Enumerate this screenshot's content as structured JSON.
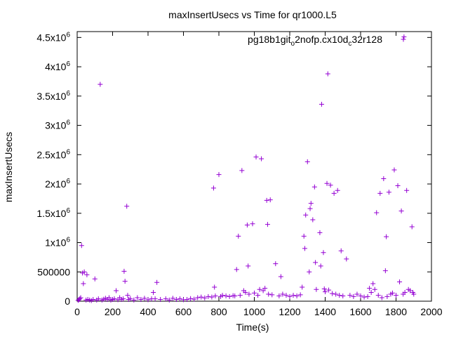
{
  "chart_data": {
    "type": "scatter",
    "title": "maxInsertUsecs vs Time for qr1000.L5",
    "xlabel": "Time(s)",
    "ylabel": "maxInsertUsecs",
    "xlim": [
      0,
      2000
    ],
    "ylim": [
      0,
      4600000
    ],
    "x_ticks": [
      0,
      200,
      400,
      600,
      800,
      1000,
      1200,
      1400,
      1600,
      1800,
      2000
    ],
    "x_tick_labels": [
      "0",
      "200",
      "400",
      "600",
      "800",
      "1000",
      "1200",
      "1400",
      "1600",
      "1800",
      "2000"
    ],
    "y_ticks": [
      0,
      500000,
      1000000,
      1500000,
      2000000,
      2500000,
      3000000,
      3500000,
      4000000,
      4500000
    ],
    "y_tick_labels": [
      {
        "base": "0",
        "exp": ""
      },
      {
        "base": "500000",
        "exp": ""
      },
      {
        "base": "1x10",
        "exp": "6"
      },
      {
        "base": "1.5x10",
        "exp": "6"
      },
      {
        "base": "2x10",
        "exp": "6"
      },
      {
        "base": "2.5x10",
        "exp": "6"
      },
      {
        "base": "3x10",
        "exp": "6"
      },
      {
        "base": "3.5x10",
        "exp": "6"
      },
      {
        "base": "4x10",
        "exp": "6"
      },
      {
        "base": "4.5x10",
        "exp": "6"
      }
    ],
    "legend": {
      "placement": "top-right",
      "parts": [
        {
          "text": "pg18b1git",
          "style": "normal"
        },
        {
          "text": "o",
          "style": "sub"
        },
        {
          "text": "2nofp.cx10d",
          "style": "normal"
        },
        {
          "text": "c",
          "style": "sub"
        },
        {
          "text": "32r128",
          "style": "normal"
        }
      ]
    },
    "series": [
      {
        "color": "#9400d3",
        "marker": "plus",
        "points": [
          [
            5,
            15000
          ],
          [
            10,
            25000
          ],
          [
            15,
            40000
          ],
          [
            20,
            60000
          ],
          [
            25,
            950000
          ],
          [
            30,
            480000
          ],
          [
            35,
            300000
          ],
          [
            40,
            500000
          ],
          [
            50,
            20000
          ],
          [
            55,
            450000
          ],
          [
            60,
            30000
          ],
          [
            70,
            20000
          ],
          [
            80,
            10000
          ],
          [
            90,
            30000
          ],
          [
            100,
            380000
          ],
          [
            110,
            20000
          ],
          [
            120,
            40000
          ],
          [
            130,
            3700000
          ],
          [
            140,
            20000
          ],
          [
            150,
            35000
          ],
          [
            160,
            50000
          ],
          [
            170,
            30000
          ],
          [
            180,
            60000
          ],
          [
            190,
            20000
          ],
          [
            200,
            30000
          ],
          [
            210,
            40000
          ],
          [
            220,
            180000
          ],
          [
            230,
            25000
          ],
          [
            240,
            60000
          ],
          [
            250,
            30000
          ],
          [
            260,
            40000
          ],
          [
            265,
            510000
          ],
          [
            270,
            340000
          ],
          [
            280,
            1620000
          ],
          [
            285,
            100000
          ],
          [
            290,
            30000
          ],
          [
            300,
            45000
          ],
          [
            320,
            20000
          ],
          [
            340,
            60000
          ],
          [
            360,
            30000
          ],
          [
            380,
            50000
          ],
          [
            400,
            25000
          ],
          [
            420,
            40000
          ],
          [
            430,
            150000
          ],
          [
            440,
            40000
          ],
          [
            450,
            320000
          ],
          [
            470,
            30000
          ],
          [
            500,
            40000
          ],
          [
            520,
            20000
          ],
          [
            540,
            50000
          ],
          [
            560,
            30000
          ],
          [
            580,
            40000
          ],
          [
            600,
            25000
          ],
          [
            620,
            30000
          ],
          [
            640,
            45000
          ],
          [
            660,
            35000
          ],
          [
            680,
            60000
          ],
          [
            700,
            70000
          ],
          [
            720,
            55000
          ],
          [
            740,
            80000
          ],
          [
            760,
            70000
          ],
          [
            770,
            1930000
          ],
          [
            775,
            240000
          ],
          [
            780,
            90000
          ],
          [
            800,
            2160000
          ],
          [
            810,
            80000
          ],
          [
            820,
            100000
          ],
          [
            840,
            90000
          ],
          [
            860,
            80000
          ],
          [
            880,
            95000
          ],
          [
            890,
            90000
          ],
          [
            900,
            540000
          ],
          [
            910,
            1110000
          ],
          [
            920,
            100000
          ],
          [
            930,
            2230000
          ],
          [
            940,
            180000
          ],
          [
            950,
            150000
          ],
          [
            960,
            1300000
          ],
          [
            965,
            600000
          ],
          [
            970,
            120000
          ],
          [
            990,
            1320000
          ],
          [
            1000,
            140000
          ],
          [
            1010,
            2460000
          ],
          [
            1020,
            100000
          ],
          [
            1030,
            200000
          ],
          [
            1040,
            2430000
          ],
          [
            1050,
            180000
          ],
          [
            1060,
            220000
          ],
          [
            1070,
            1720000
          ],
          [
            1075,
            1310000
          ],
          [
            1080,
            120000
          ],
          [
            1090,
            1730000
          ],
          [
            1100,
            110000
          ],
          [
            1120,
            640000
          ],
          [
            1140,
            90000
          ],
          [
            1150,
            420000
          ],
          [
            1160,
            120000
          ],
          [
            1180,
            100000
          ],
          [
            1200,
            80000
          ],
          [
            1220,
            100000
          ],
          [
            1240,
            90000
          ],
          [
            1260,
            110000
          ],
          [
            1270,
            240000
          ],
          [
            1280,
            1110000
          ],
          [
            1285,
            900000
          ],
          [
            1290,
            1470000
          ],
          [
            1300,
            2380000
          ],
          [
            1310,
            500000
          ],
          [
            1315,
            1580000
          ],
          [
            1320,
            1670000
          ],
          [
            1330,
            1390000
          ],
          [
            1340,
            1950000
          ],
          [
            1345,
            660000
          ],
          [
            1350,
            200000
          ],
          [
            1370,
            1170000
          ],
          [
            1375,
            600000
          ],
          [
            1380,
            3360000
          ],
          [
            1390,
            830000
          ],
          [
            1395,
            210000
          ],
          [
            1400,
            160000
          ],
          [
            1410,
            2010000
          ],
          [
            1415,
            3880000
          ],
          [
            1420,
            190000
          ],
          [
            1430,
            1980000
          ],
          [
            1440,
            130000
          ],
          [
            1450,
            1840000
          ],
          [
            1460,
            120000
          ],
          [
            1470,
            1890000
          ],
          [
            1480,
            100000
          ],
          [
            1490,
            860000
          ],
          [
            1500,
            90000
          ],
          [
            1520,
            720000
          ],
          [
            1540,
            100000
          ],
          [
            1560,
            80000
          ],
          [
            1580,
            120000
          ],
          [
            1600,
            90000
          ],
          [
            1620,
            70000
          ],
          [
            1640,
            80000
          ],
          [
            1650,
            220000
          ],
          [
            1660,
            150000
          ],
          [
            1670,
            300000
          ],
          [
            1680,
            200000
          ],
          [
            1690,
            1510000
          ],
          [
            1700,
            100000
          ],
          [
            1710,
            1840000
          ],
          [
            1720,
            60000
          ],
          [
            1730,
            2090000
          ],
          [
            1740,
            520000
          ],
          [
            1745,
            1100000
          ],
          [
            1750,
            80000
          ],
          [
            1760,
            1860000
          ],
          [
            1770,
            120000
          ],
          [
            1780,
            140000
          ],
          [
            1790,
            2240000
          ],
          [
            1800,
            100000
          ],
          [
            1810,
            1970000
          ],
          [
            1820,
            330000
          ],
          [
            1830,
            1540000
          ],
          [
            1840,
            120000
          ],
          [
            1845,
            4510000
          ],
          [
            1850,
            150000
          ],
          [
            1860,
            1890000
          ],
          [
            1870,
            200000
          ],
          [
            1880,
            180000
          ],
          [
            1890,
            1270000
          ],
          [
            1895,
            150000
          ],
          [
            1900,
            120000
          ]
        ]
      }
    ]
  }
}
